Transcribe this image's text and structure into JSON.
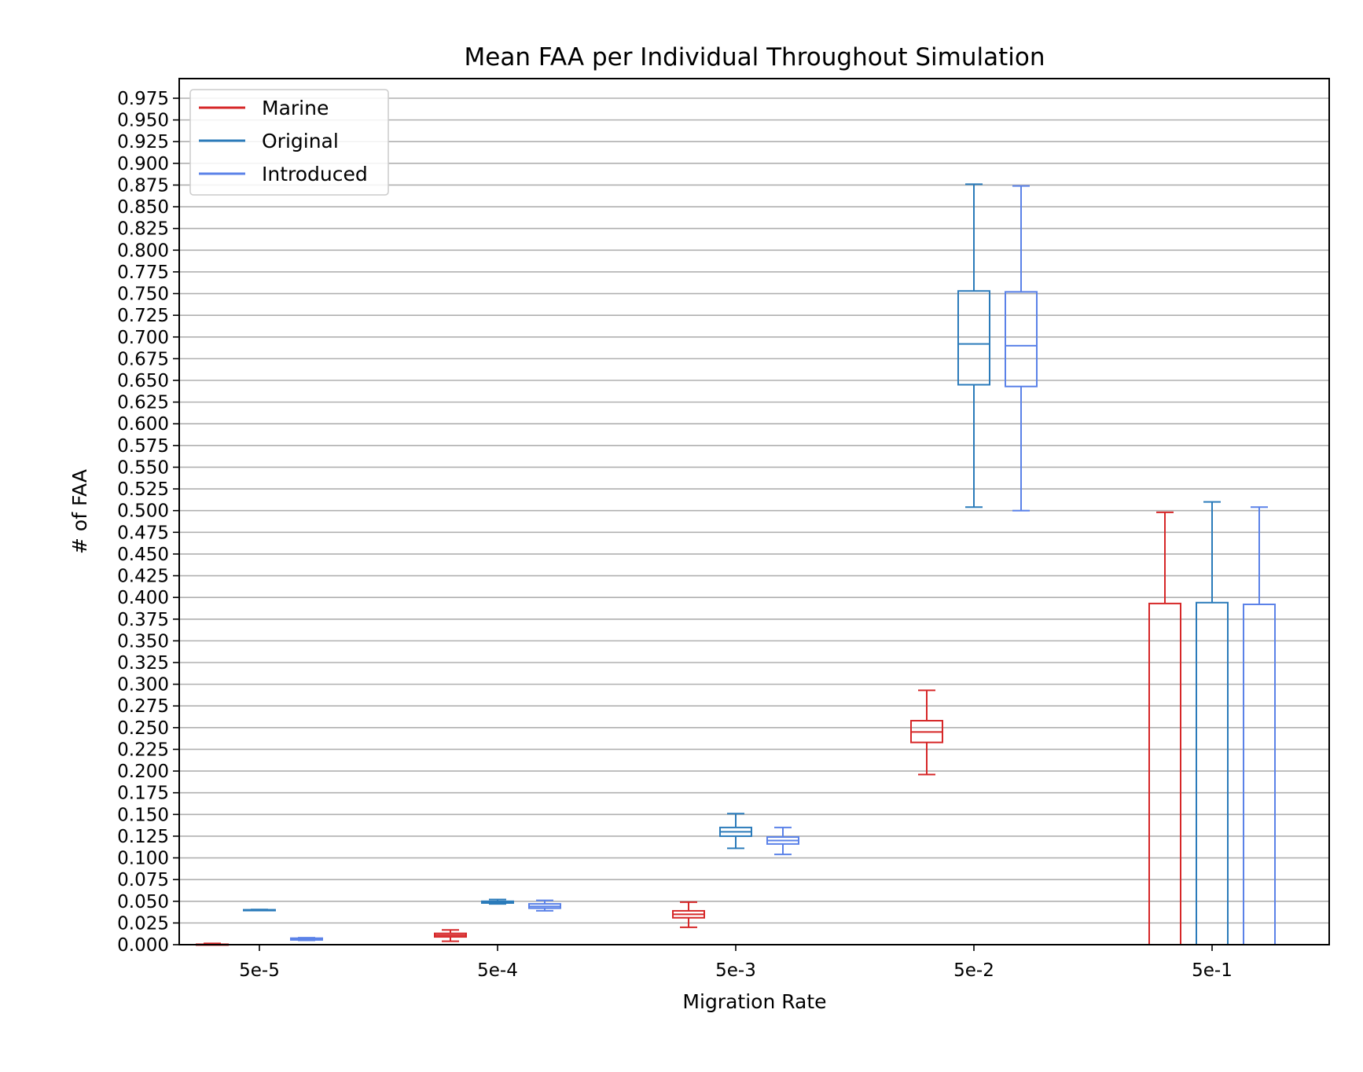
{
  "chart_data": {
    "type": "box",
    "title": "Mean FAA per Individual Throughout Simulation",
    "xlabel": "Migration Rate",
    "ylabel": "# of FAA",
    "categories": [
      "5e-5",
      "5e-4",
      "5e-3",
      "5e-2",
      "5e-1"
    ],
    "ylim": [
      0,
      1.0
    ],
    "ytick_step": 0.025,
    "yticks": [
      "0.000",
      "0.025",
      "0.050",
      "0.075",
      "0.100",
      "0.125",
      "0.150",
      "0.175",
      "0.200",
      "0.225",
      "0.250",
      "0.275",
      "0.300",
      "0.325",
      "0.350",
      "0.375",
      "0.400",
      "0.425",
      "0.450",
      "0.475",
      "0.500",
      "0.525",
      "0.550",
      "0.575",
      "0.600",
      "0.625",
      "0.650",
      "0.675",
      "0.700",
      "0.725",
      "0.750",
      "0.775",
      "0.800",
      "0.825",
      "0.850",
      "0.875",
      "0.900",
      "0.925",
      "0.950",
      "0.975"
    ],
    "grid": "horizontal",
    "legend_position": "top-left",
    "series": [
      {
        "name": "Marine",
        "color": "#d62728",
        "boxes": [
          {
            "category": "5e-5",
            "whislo": 0.0,
            "q1": 0.0,
            "med": 0.0,
            "q3": 0.0005,
            "whishi": 0.0015
          },
          {
            "category": "5e-4",
            "whislo": 0.004,
            "q1": 0.009,
            "med": 0.011,
            "q3": 0.013,
            "whishi": 0.017
          },
          {
            "category": "5e-3",
            "whislo": 0.02,
            "q1": 0.031,
            "med": 0.035,
            "q3": 0.039,
            "whishi": 0.049
          },
          {
            "category": "5e-2",
            "whislo": 0.196,
            "q1": 0.233,
            "med": 0.245,
            "q3": 0.258,
            "whishi": 0.293
          },
          {
            "category": "5e-1",
            "whislo": 0.0,
            "q1": 0.0,
            "med": 0.0,
            "q3": 0.393,
            "whishi": 0.498
          }
        ]
      },
      {
        "name": "Original",
        "color": "#2b7bba",
        "boxes": [
          {
            "category": "5e-5",
            "whislo": 0.0395,
            "q1": 0.0398,
            "med": 0.04,
            "q3": 0.0402,
            "whishi": 0.0405
          },
          {
            "category": "5e-4",
            "whislo": 0.047,
            "q1": 0.048,
            "med": 0.049,
            "q3": 0.05,
            "whishi": 0.052
          },
          {
            "category": "5e-3",
            "whislo": 0.111,
            "q1": 0.125,
            "med": 0.13,
            "q3": 0.135,
            "whishi": 0.151
          },
          {
            "category": "5e-2",
            "whislo": 0.504,
            "q1": 0.645,
            "med": 0.692,
            "q3": 0.753,
            "whishi": 0.876
          },
          {
            "category": "5e-1",
            "whislo": 0.0,
            "q1": 0.0,
            "med": 0.0,
            "q3": 0.394,
            "whishi": 0.51
          }
        ]
      },
      {
        "name": "Introduced",
        "color": "#5b82e8",
        "boxes": [
          {
            "category": "5e-5",
            "whislo": 0.005,
            "q1": 0.0055,
            "med": 0.0065,
            "q3": 0.0075,
            "whishi": 0.008
          },
          {
            "category": "5e-4",
            "whislo": 0.039,
            "q1": 0.042,
            "med": 0.044,
            "q3": 0.047,
            "whishi": 0.051
          },
          {
            "category": "5e-3",
            "whislo": 0.104,
            "q1": 0.116,
            "med": 0.12,
            "q3": 0.124,
            "whishi": 0.135
          },
          {
            "category": "5e-2",
            "whislo": 0.5,
            "q1": 0.643,
            "med": 0.69,
            "q3": 0.752,
            "whishi": 0.874
          },
          {
            "category": "5e-1",
            "whislo": 0.0,
            "q1": 0.0,
            "med": 0.0,
            "q3": 0.392,
            "whishi": 0.504
          }
        ]
      }
    ]
  }
}
